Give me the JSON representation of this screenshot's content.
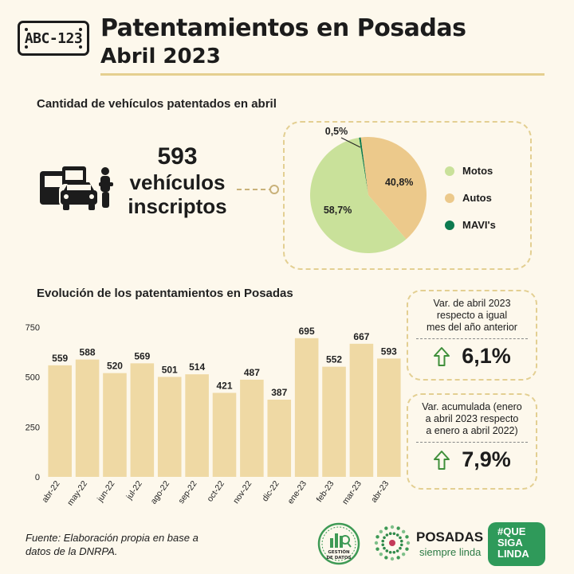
{
  "header": {
    "plate_text": "ABC-123",
    "title_line1": "Patentamientos en Posadas",
    "title_line2": "Abril 2023"
  },
  "summary": {
    "section_title": "Cantidad de vehículos patentados en abril",
    "count": "593",
    "count_label_line1": "vehículos",
    "count_label_line2": "inscriptos"
  },
  "chart_data": [
    {
      "type": "pie",
      "labels": [
        "Motos",
        "Autos",
        "MAVI's"
      ],
      "values": [
        58.7,
        40.8,
        0.5
      ],
      "value_labels": [
        "58,7%",
        "40,8%",
        "0,5%"
      ],
      "colors": [
        "#c9e19a",
        "#ecc98b",
        "#0d7a4f"
      ],
      "legend_position": "right"
    },
    {
      "type": "bar",
      "title": "Evolución de los patentamientos en Posadas",
      "categories": [
        "abr-22",
        "may-22",
        "jun-22",
        "jul-22",
        "ago-22",
        "sep-22",
        "oct-22",
        "nov-22",
        "dic-22",
        "ene-23",
        "feb-23",
        "mar-23",
        "abr-23"
      ],
      "values": [
        559,
        588,
        520,
        569,
        501,
        514,
        421,
        487,
        387,
        695,
        552,
        667,
        593
      ],
      "ylim": [
        0,
        750
      ],
      "yticks": [
        0,
        250,
        500,
        750
      ],
      "bar_color": "#efd9a4",
      "grid": false
    }
  ],
  "variations": [
    {
      "label_lines": [
        "Var. de abril 2023",
        "respecto a igual",
        "mes del año anterior"
      ],
      "value": "6,1%"
    },
    {
      "label_lines": [
        "Var. acumulada (enero",
        "a abril 2023 respecto",
        "a enero a abril 2022)"
      ],
      "value": "7,9%"
    }
  ],
  "footer": {
    "source_line1": "Fuente: Elaboración propia en base a",
    "source_line2": "datos de la DNRPA.",
    "logo_gestion_line1": "GESTIÓN",
    "logo_gestion_line2": "DE DATOS",
    "posadas_name": "POSADAS",
    "posadas_tagline": "siempre linda",
    "qsl_line1": "#QUE",
    "qsl_line2": "SIGA",
    "qsl_line3": "LINDA"
  },
  "colors": {
    "accent_gold": "#e5cf8f",
    "arrow_green": "#3f8f3a",
    "brand_green": "#2f9a5a"
  },
  "icons": [
    "license-plate-icon",
    "vehicles-icon",
    "arrow-up-icon",
    "gestion-datos-logo",
    "posadas-flower-logo"
  ]
}
